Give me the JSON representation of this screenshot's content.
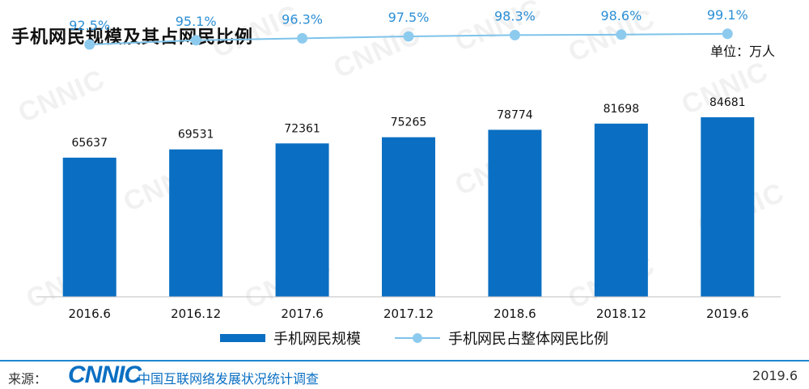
{
  "title": "手机网民规模及其占网民比例",
  "unit_label": "单位：万人",
  "watermark_text": "CNNIC",
  "legend": {
    "bar_label": "手机网民规模",
    "line_label": "手机网民占整体网民比例"
  },
  "footer": {
    "prefix": "来源：",
    "logo": "CNNIC",
    "org": "中国互联网络发展状况统计调查",
    "date": "2019.6"
  },
  "chart_data": {
    "type": "bar",
    "categories": [
      "2016.6",
      "2016.12",
      "2017.6",
      "2017.12",
      "2018.6",
      "2018.12",
      "2019.6"
    ],
    "series": [
      {
        "name": "手机网民规模",
        "type": "bar",
        "values": [
          65637,
          69531,
          72361,
          75265,
          78774,
          81698,
          84681
        ],
        "labels": [
          "65637",
          "69531",
          "72361",
          "75265",
          "78774",
          "81698",
          "84681"
        ],
        "color": "#0a6fc2"
      },
      {
        "name": "手机网民占整体网民比例",
        "type": "line",
        "values": [
          92.5,
          95.1,
          96.3,
          97.5,
          98.3,
          98.6,
          99.1
        ],
        "labels": [
          "92.5%",
          "95.1%",
          "96.3%",
          "97.5%",
          "98.3%",
          "98.6%",
          "99.1%"
        ],
        "color": "#8dcbee"
      }
    ],
    "bar_axis_range": [
      0,
      140000
    ],
    "line_axis_range": [
      0,
      120
    ],
    "grid": false,
    "legend_position": "bottom"
  }
}
